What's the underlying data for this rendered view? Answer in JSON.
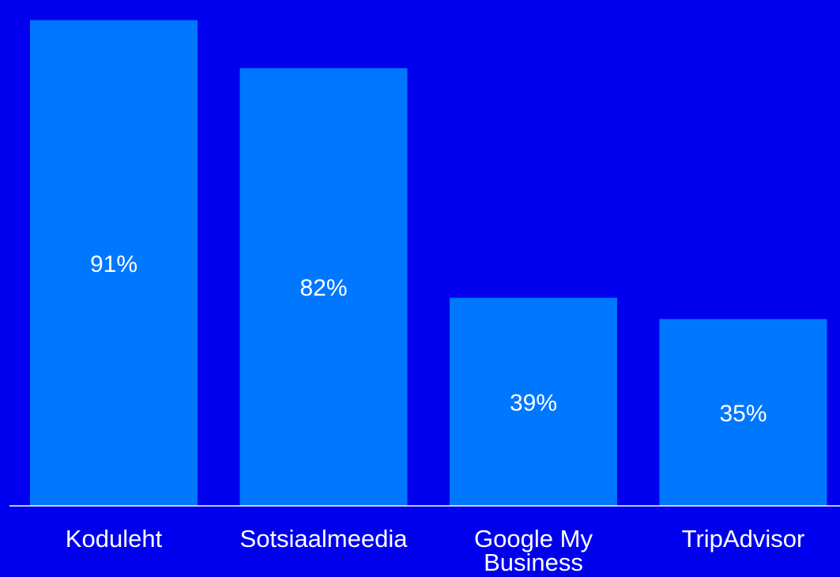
{
  "colors": {
    "background": "#0000ee",
    "bar": "#0077ff",
    "axis": "#ffffff",
    "text": "#ffffff"
  },
  "chart_data": {
    "type": "bar",
    "categories": [
      "Koduleht",
      "Sotsiaalmeedia",
      "Google My Business",
      "TripAdvisor"
    ],
    "values": [
      91,
      82,
      39,
      35
    ],
    "data_labels": [
      "91%",
      "82%",
      "39%",
      "35%"
    ],
    "unit": "%",
    "ylim": [
      0,
      93
    ],
    "title": "",
    "xlabel": "",
    "ylabel": "",
    "grid": false,
    "legend": "none"
  }
}
